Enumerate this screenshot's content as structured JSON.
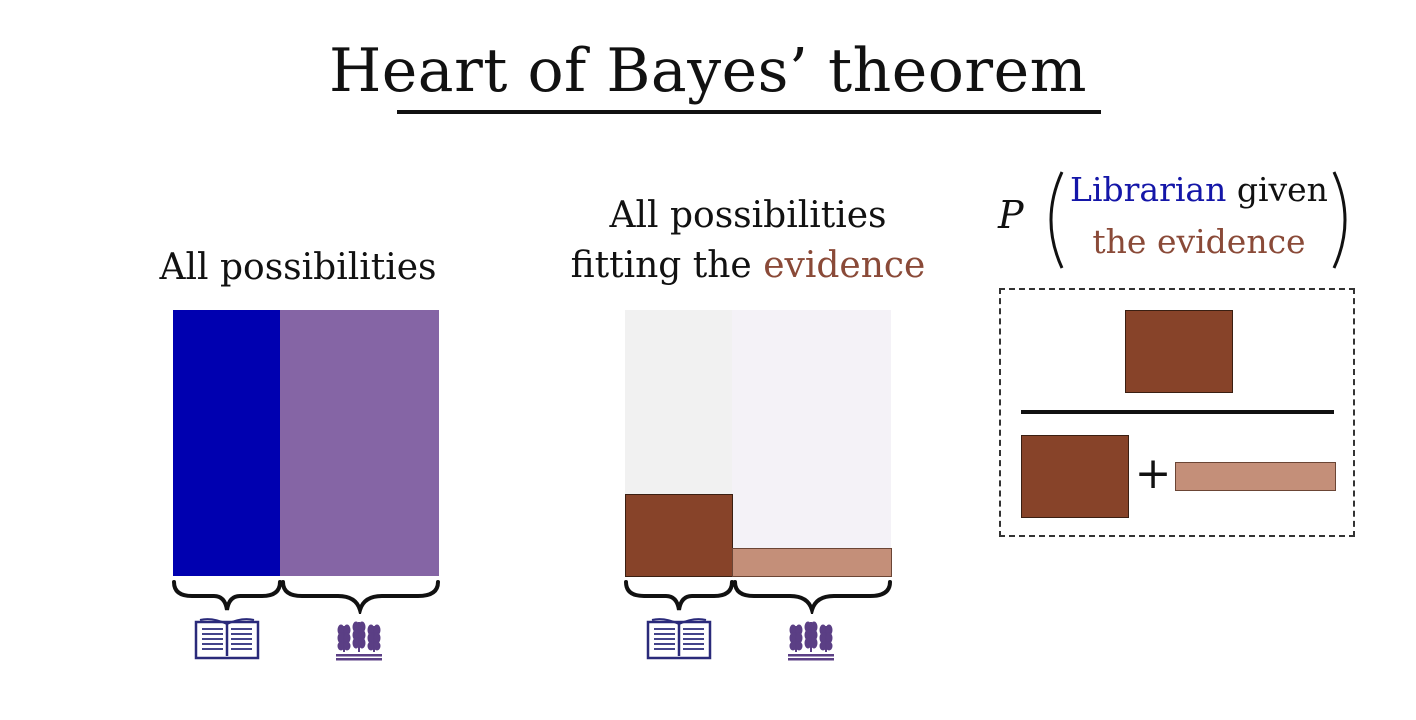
{
  "title": "Heart of Bayes’ theorem",
  "left_panel": {
    "label": "All possibilities"
  },
  "middle_panel": {
    "label_line1": "All possibilities",
    "label_line2_prefix": "fitting the ",
    "label_line2_highlight": "evidence"
  },
  "formula": {
    "p": "P",
    "line1_highlight": "Librarian",
    "line1_rest": " given",
    "line2": "the evidence",
    "plus": "+"
  },
  "icons": {
    "librarian": "book-icon",
    "farmer": "wheat-icon"
  },
  "colors": {
    "librarian": "#0000b0",
    "farmer": "#8565a5",
    "librarian_evidence": "#874329",
    "farmer_evidence": "#c48f79",
    "faded_librarian": "#f1f1f1",
    "faded_farmer": "#f4f2f7",
    "evidence_text": "#8a4a38",
    "librarian_text": "#1416a8"
  }
}
